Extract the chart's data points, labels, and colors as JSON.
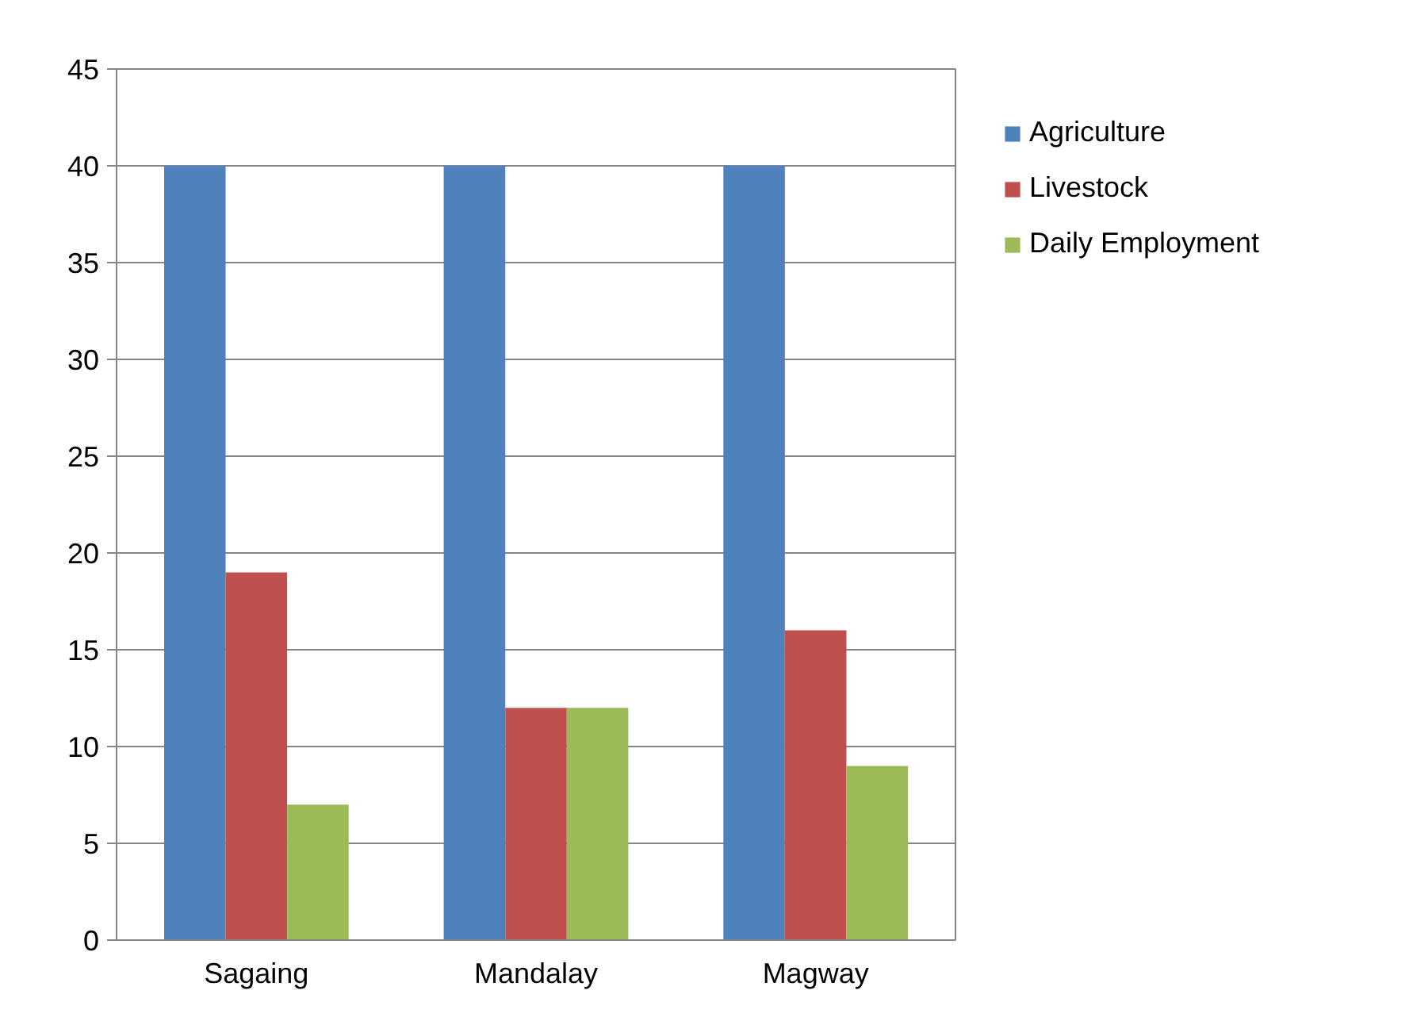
{
  "chart_data": {
    "type": "bar",
    "categories": [
      "Sagaing",
      "Mandalay",
      "Magway"
    ],
    "series": [
      {
        "name": "Agriculture",
        "color": "#4f81bd",
        "values": [
          40,
          40,
          40
        ]
      },
      {
        "name": "Livestock",
        "color": "#c0504d",
        "values": [
          19,
          12,
          16
        ]
      },
      {
        "name": "Daily Employment",
        "color": "#9bbb59",
        "values": [
          7,
          12,
          9
        ]
      }
    ],
    "ylim": [
      0,
      45
    ],
    "yticks": [
      0,
      5,
      10,
      15,
      20,
      25,
      30,
      35,
      40,
      45
    ],
    "grid": "y",
    "legend": "right"
  }
}
